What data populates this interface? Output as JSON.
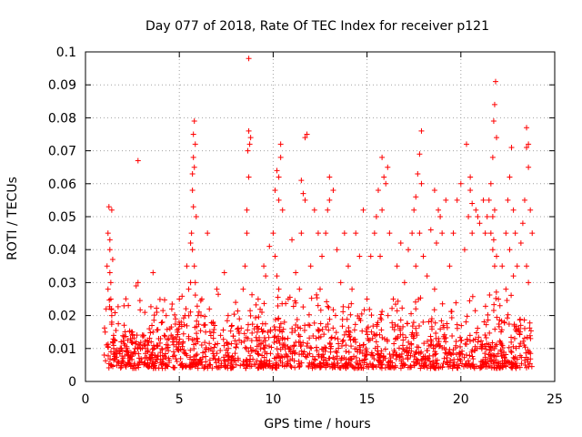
{
  "chart_data": {
    "type": "scatter",
    "title": "Day 077 of 2018, Rate Of TEC Index for receiver p121",
    "xlabel": "GPS time / hours",
    "ylabel": "ROTI / TECUs",
    "xlim": [
      0,
      25
    ],
    "ylim": [
      0,
      0.1
    ],
    "xticks": [
      0,
      5,
      10,
      15,
      20,
      25
    ],
    "xtick_labels": [
      "0",
      "5",
      "10",
      "15",
      "20",
      "25"
    ],
    "yticks": [
      0,
      0.01,
      0.02,
      0.03,
      0.04,
      0.05,
      0.06,
      0.07,
      0.08,
      0.09,
      0.1
    ],
    "ytick_labels": [
      "0",
      "0.01",
      "0.02",
      "0.03",
      "0.04",
      "0.05",
      "0.06",
      "0.07",
      "0.08",
      "0.09",
      "0.1"
    ],
    "grid": true,
    "marker": "+",
    "color": "#ff0000",
    "series": [
      {
        "x": [
          1.0,
          1.05,
          1.1,
          1.15,
          1.2,
          1.25,
          1.3,
          1.35,
          1.4,
          1.45,
          1.5,
          1.55,
          1.6,
          1.2,
          1.3,
          1.35,
          1.4,
          1.5,
          1.3,
          1.4,
          1.45,
          1.7,
          1.8,
          1.9,
          2.0,
          2.1,
          2.2,
          2.3,
          2.4,
          2.5,
          2.6,
          2.7,
          2.8,
          2.9,
          3.0,
          3.1,
          3.2,
          3.3,
          3.4,
          3.5,
          3.6,
          3.7,
          3.8,
          3.9,
          2.8,
          2.7,
          3.6,
          3.8,
          4.0,
          4.1,
          4.2,
          4.3,
          4.4,
          4.5,
          4.6,
          4.7,
          4.8,
          4.9,
          5.0,
          5.1,
          5.2,
          5.3,
          5.4,
          5.5,
          5.6,
          5.65,
          5.7,
          5.75,
          5.8,
          5.85,
          5.9,
          5.6,
          5.7,
          5.75,
          5.8,
          5.7,
          5.75,
          5.8,
          5.85,
          6.0,
          6.2,
          6.4,
          6.5,
          6.6,
          6.8,
          7.0,
          7.2,
          7.4,
          7.6,
          7.8,
          8.0,
          8.2,
          8.4,
          8.5,
          8.6,
          8.7,
          8.75,
          8.8,
          8.6,
          8.65,
          8.7,
          8.7,
          9.0,
          9.2,
          9.4,
          9.5,
          9.6,
          9.8,
          10.0,
          10.1,
          10.2,
          10.3,
          10.4,
          10.5,
          10.1,
          10.2,
          10.3,
          10.4,
          10.3,
          10.6,
          10.8,
          11.0,
          11.2,
          11.4,
          11.5,
          11.6,
          11.7,
          11.8,
          11.5,
          11.7,
          12.0,
          12.2,
          12.4,
          12.5,
          12.6,
          12.8,
          13.0,
          13.2,
          12.9,
          13.0,
          13.4,
          13.6,
          13.8,
          14.0,
          14.2,
          14.4,
          14.6,
          14.8,
          15.0,
          15.2,
          15.4,
          15.5,
          15.6,
          15.8,
          15.9,
          16.0,
          16.2,
          15.7,
          15.8,
          16.1,
          16.4,
          16.6,
          16.8,
          17.0,
          17.2,
          17.4,
          17.5,
          17.6,
          17.7,
          17.8,
          17.9,
          17.6,
          17.8,
          17.9,
          18.0,
          18.2,
          18.4,
          18.6,
          18.8,
          19.0,
          19.2,
          18.6,
          18.7,
          18.9,
          19.4,
          19.6,
          19.8,
          20.0,
          20.2,
          20.4,
          20.5,
          20.6,
          20.8,
          21.0,
          21.2,
          20.3,
          20.5,
          20.6,
          20.9,
          21.3,
          21.4,
          21.5,
          21.6,
          21.7,
          21.75,
          21.8,
          21.85,
          21.9,
          21.6,
          21.7,
          21.75,
          21.8,
          21.9,
          21.7,
          21.8,
          22.0,
          22.2,
          22.4,
          22.5,
          22.6,
          22.7,
          22.8,
          22.9,
          23.0,
          22.4,
          22.6,
          22.8,
          23.2,
          23.3,
          23.4,
          23.5,
          23.6,
          23.7,
          23.8,
          23.5,
          23.6,
          23.5,
          23.6
        ],
        "y": [
          0.008,
          0.015,
          0.022,
          0.035,
          0.045,
          0.053,
          0.04,
          0.03,
          0.02,
          0.012,
          0.01,
          0.007,
          0.009,
          0.028,
          0.033,
          0.025,
          0.018,
          0.014,
          0.043,
          0.052,
          0.037,
          0.006,
          0.009,
          0.012,
          0.007,
          0.011,
          0.01,
          0.008,
          0.013,
          0.015,
          0.009,
          0.012,
          0.03,
          0.011,
          0.006,
          0.014,
          0.01,
          0.009,
          0.016,
          0.012,
          0.015,
          0.008,
          0.011,
          0.013,
          0.067,
          0.029,
          0.033,
          0.021,
          0.013,
          0.018,
          0.014,
          0.02,
          0.011,
          0.016,
          0.022,
          0.009,
          0.019,
          0.015,
          0.025,
          0.018,
          0.012,
          0.02,
          0.035,
          0.028,
          0.03,
          0.045,
          0.058,
          0.068,
          0.079,
          0.072,
          0.05,
          0.042,
          0.063,
          0.075,
          0.065,
          0.04,
          0.053,
          0.035,
          0.03,
          0.02,
          0.025,
          0.015,
          0.045,
          0.022,
          0.018,
          0.028,
          0.014,
          0.033,
          0.02,
          0.017,
          0.024,
          0.019,
          0.028,
          0.035,
          0.052,
          0.076,
          0.072,
          0.074,
          0.045,
          0.07,
          0.098,
          0.062,
          0.016,
          0.025,
          0.021,
          0.035,
          0.032,
          0.041,
          0.045,
          0.058,
          0.064,
          0.062,
          0.068,
          0.052,
          0.038,
          0.032,
          0.028,
          0.072,
          0.055,
          0.018,
          0.025,
          0.043,
          0.033,
          0.028,
          0.061,
          0.057,
          0.055,
          0.075,
          0.045,
          0.074,
          0.035,
          0.052,
          0.045,
          0.028,
          0.038,
          0.045,
          0.062,
          0.058,
          0.052,
          0.055,
          0.04,
          0.03,
          0.045,
          0.035,
          0.028,
          0.045,
          0.038,
          0.052,
          0.025,
          0.038,
          0.045,
          0.05,
          0.058,
          0.068,
          0.062,
          0.06,
          0.045,
          0.038,
          0.052,
          0.065,
          0.025,
          0.035,
          0.042,
          0.03,
          0.04,
          0.045,
          0.052,
          0.056,
          0.063,
          0.069,
          0.076,
          0.035,
          0.045,
          0.06,
          0.038,
          0.032,
          0.046,
          0.058,
          0.052,
          0.045,
          0.055,
          0.028,
          0.042,
          0.05,
          0.035,
          0.045,
          0.055,
          0.06,
          0.04,
          0.05,
          0.058,
          0.045,
          0.052,
          0.048,
          0.055,
          0.072,
          0.062,
          0.054,
          0.05,
          0.045,
          0.05,
          0.055,
          0.06,
          0.068,
          0.079,
          0.084,
          0.091,
          0.074,
          0.045,
          0.05,
          0.043,
          0.052,
          0.038,
          0.04,
          0.035,
          0.025,
          0.035,
          0.045,
          0.055,
          0.062,
          0.071,
          0.052,
          0.045,
          0.035,
          0.028,
          0.04,
          0.032,
          0.042,
          0.048,
          0.055,
          0.077,
          0.065,
          0.052,
          0.045,
          0.071,
          0.072,
          0.035,
          0.03
        ]
      }
    ]
  }
}
